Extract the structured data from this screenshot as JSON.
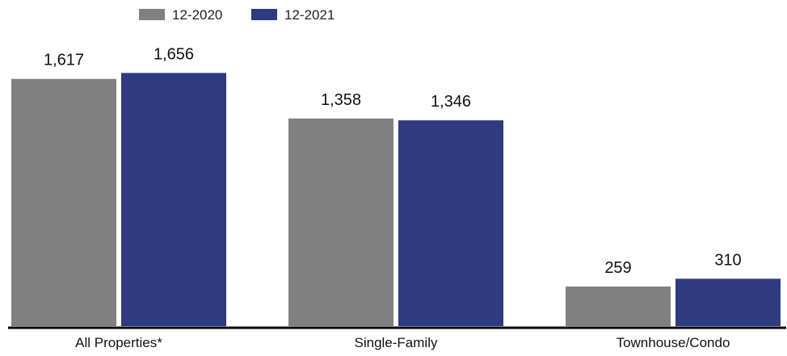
{
  "chart_data": {
    "type": "bar",
    "categories": [
      "All Properties*",
      "Single-Family",
      "Townhouse/Condo"
    ],
    "series": [
      {
        "name": "12-2020",
        "values": [
          1617,
          1358,
          259
        ],
        "labels": [
          "1,617",
          "1,358",
          "259"
        ],
        "color": "#808080"
      },
      {
        "name": "12-2021",
        "values": [
          1656,
          1346,
          310
        ],
        "labels": [
          "1,656",
          "1,346",
          "310"
        ],
        "color": "#2e3b7f"
      }
    ],
    "title": "",
    "xlabel": "",
    "ylabel": "",
    "ylim": [
      0,
      1700
    ],
    "grid": false,
    "legend_position": "top-left",
    "axis_color": "#000000"
  }
}
